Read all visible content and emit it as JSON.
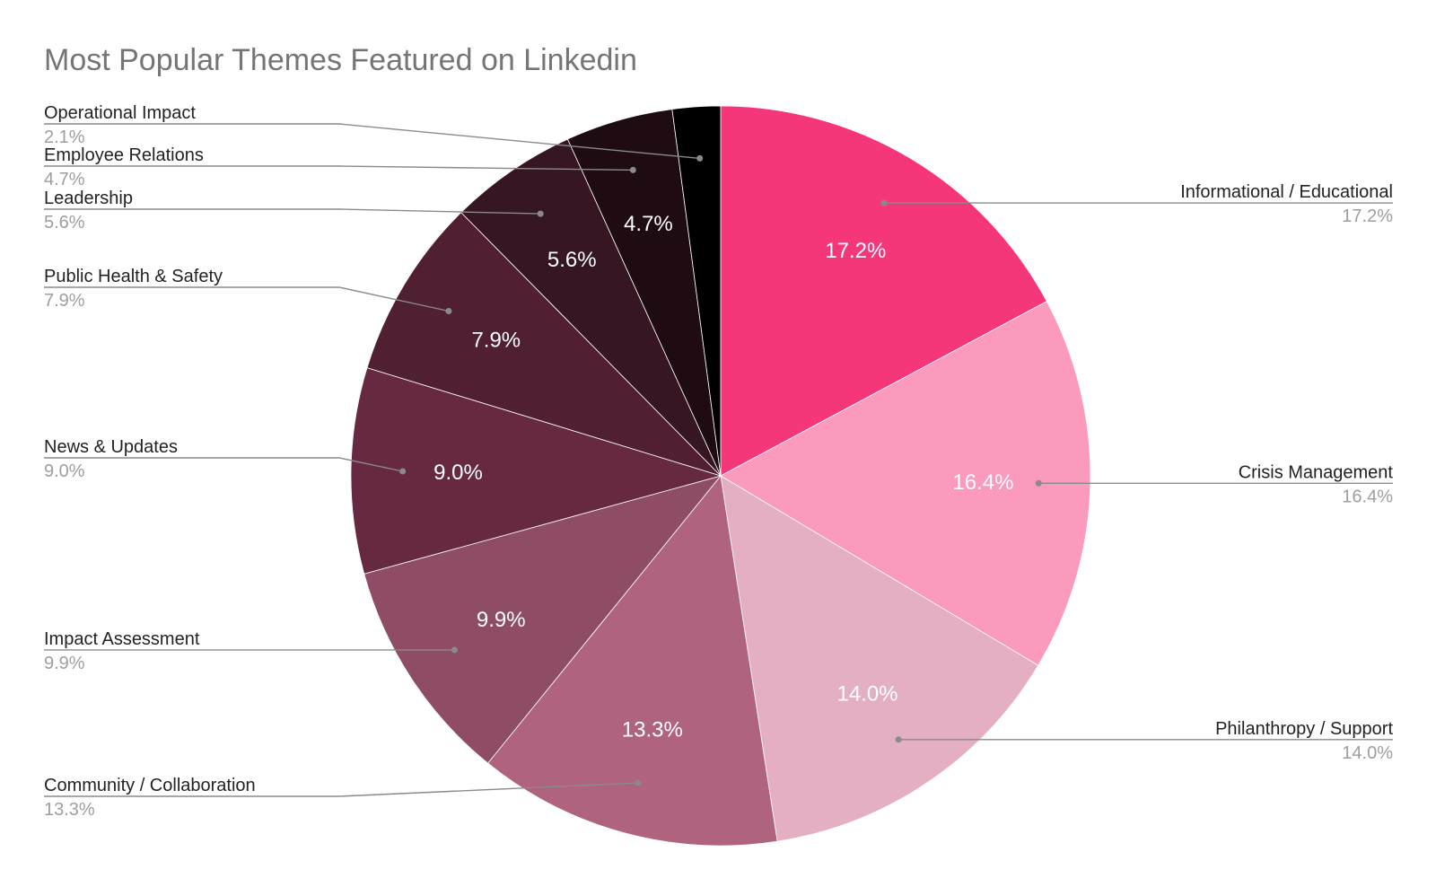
{
  "chart_data": {
    "type": "pie",
    "title": "Most Popular Themes Featured on Linkedin",
    "legend": "callouts",
    "slices": [
      {
        "label": "Informational / Educational",
        "value": 17.2,
        "display": "17.2%",
        "color": "#f5367a"
      },
      {
        "label": "Crisis Management",
        "value": 16.4,
        "display": "16.4%",
        "color": "#fb9abd"
      },
      {
        "label": "Philanthropy / Support",
        "value": 14.0,
        "display": "14.0%",
        "color": "#e4afc3"
      },
      {
        "label": "Community / Collaboration",
        "value": 13.3,
        "display": "13.3%",
        "color": "#b0637f"
      },
      {
        "label": "Impact Assessment",
        "value": 9.9,
        "display": "9.9%",
        "color": "#8f4c66"
      },
      {
        "label": "News & Updates",
        "value": 9.0,
        "display": "9.0%",
        "color": "#672841"
      },
      {
        "label": "Public Health & Safety",
        "value": 7.9,
        "display": "7.9%",
        "color": "#501f32"
      },
      {
        "label": "Leadership",
        "value": 5.6,
        "display": "5.6%",
        "color": "#361622"
      },
      {
        "label": "Employee Relations",
        "value": 4.7,
        "display": "4.7%",
        "color": "#1f0c13"
      },
      {
        "label": "Operational Impact",
        "value": 2.1,
        "display": "2.1%",
        "color": "#000000"
      }
    ]
  }
}
